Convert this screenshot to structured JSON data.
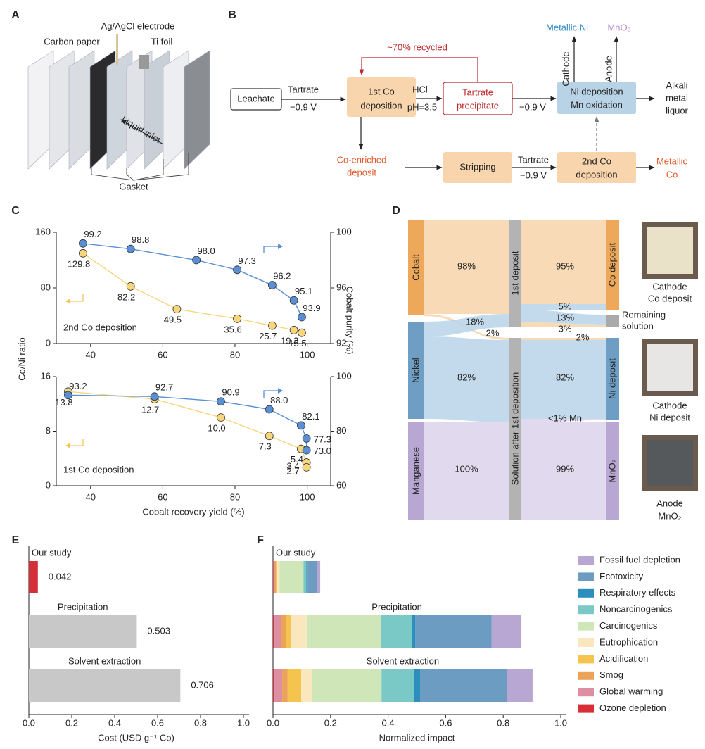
{
  "panel_labels": [
    "A",
    "B",
    "C",
    "D",
    "E",
    "F"
  ],
  "panel_a": {
    "labels": [
      "Ag/AgCl electrode",
      "Carbon paper",
      "Ti foil",
      "Liquid inlet",
      "Gasket"
    ]
  },
  "panel_b": {
    "nodes": [
      {
        "lines": [
          "Leachate"
        ]
      },
      {
        "lines": [
          "1st Co",
          "deposition"
        ]
      },
      {
        "lines": [
          "Tartrate",
          "precipitate"
        ]
      },
      {
        "lines": [
          "Ni deposition",
          "Mn oxidation"
        ]
      },
      {
        "lines": [
          "Alkali",
          "metal",
          "liquor"
        ]
      },
      {
        "lines": [
          "Co-enriched",
          "deposit"
        ]
      },
      {
        "lines": [
          "Stripping"
        ]
      },
      {
        "lines": [
          "2nd Co",
          "deposition"
        ]
      },
      {
        "lines": [
          "Metallic",
          "Co"
        ]
      },
      {
        "lines": [
          "Metallic Ni"
        ]
      },
      {
        "lines": [
          "MnO₂"
        ]
      }
    ],
    "edge_labels": [
      "Tartrate",
      "−0.9 V",
      "HCl",
      "pH=3.5",
      "−0.9 V",
      "~70% recycled",
      "Cathode",
      "Anode",
      "Tartrate",
      "−0.9 V"
    ]
  },
  "panel_d": {
    "sources": [
      "Cobalt",
      "Nickel",
      "Manganese"
    ],
    "middle": [
      "1st deposit",
      "Solution after 1st deposition"
    ],
    "targets": [
      "Co deposit",
      "Ni deposit",
      "MnO₂"
    ],
    "remaining": [
      "Remaining",
      "solution"
    ],
    "flow_labels": [
      "98%",
      "18%",
      "2%",
      "82%",
      "100%",
      "95%",
      "5%",
      "13%",
      "3%",
      "2%",
      "82%",
      "<1% Mn",
      "99%"
    ],
    "photo_captions": [
      [
        "Cathode",
        "Co deposit"
      ],
      [
        "Cathode",
        "Ni deposit"
      ],
      [
        "Anode",
        "MnO₂"
      ]
    ]
  },
  "chart_data": [
    {
      "type": "line",
      "ylabel": "Co/Ni ratio",
      "y2label": "Cobalt purity (%)",
      "annotation": "2nd Co deposition",
      "xlim": [
        30.5,
        106.5
      ],
      "xticks": [
        40,
        60,
        80,
        100
      ],
      "ylim": [
        0,
        160
      ],
      "yticks": [
        0,
        80,
        160
      ],
      "y2lim": [
        92,
        100
      ],
      "y2ticks": [
        92,
        96,
        100
      ],
      "series": [
        {
          "color": "#f7d67e",
          "axis": "y",
          "x": [
            37.9,
            51.1,
            63.9,
            80.6,
            90.3,
            96.3,
            98.5
          ],
          "values": [
            129.8,
            82.2,
            49.5,
            35.6,
            25.7,
            19.3,
            15.5
          ],
          "value_labels": [
            "129.8",
            "82.2",
            "49.5",
            "35.6",
            "25.7",
            "19.3",
            "15.5"
          ]
        },
        {
          "color": "#5b8fd4",
          "axis": "y2",
          "x": [
            37.9,
            51.1,
            69.3,
            80.6,
            90.3,
            96.3,
            98.5
          ],
          "values": [
            99.2,
            98.8,
            98.0,
            97.3,
            96.2,
            95.1,
            93.9
          ],
          "value_labels": [
            "99.2",
            "98.8",
            "98.0",
            "97.3",
            "96.2",
            "95.1",
            "93.9"
          ]
        }
      ]
    },
    {
      "type": "line",
      "xlabel": "Cobalt recovery yield (%)",
      "annotation": "1st Co deposition",
      "xlim": [
        30.5,
        106.5
      ],
      "xticks": [
        40,
        60,
        80,
        100
      ],
      "ylim": [
        0,
        16
      ],
      "yticks": [
        0,
        8,
        16
      ],
      "y2lim": [
        60,
        100
      ],
      "y2ticks": [
        60,
        80,
        100
      ],
      "series": [
        {
          "color": "#f7d67e",
          "axis": "y",
          "x": [
            33.8,
            57.7,
            76.1,
            89.5,
            98.3,
            99.8,
            99.8
          ],
          "values": [
            13.8,
            12.7,
            10.0,
            7.3,
            5.4,
            3.4,
            2.7
          ],
          "value_labels": [
            "13.8",
            "12.7",
            "10.0",
            "7.3",
            "5.4",
            "3.4",
            "2.7"
          ]
        },
        {
          "color": "#5b8fd4",
          "axis": "y2",
          "x": [
            33.8,
            57.7,
            76.1,
            89.5,
            98.3,
            99.8,
            99.8
          ],
          "values": [
            93.2,
            92.7,
            90.9,
            88.0,
            82.1,
            77.3,
            73.0
          ],
          "value_labels": [
            "93.2",
            "92.7",
            "90.9",
            "88.0",
            "82.1",
            "77.3",
            "73.0"
          ]
        }
      ]
    },
    {
      "type": "bar",
      "orientation": "horizontal",
      "xlabel": "Cost (USD g⁻¹ Co)",
      "categories": [
        "Our study",
        "Precipitation",
        "Solvent extraction"
      ],
      "values": [
        0.042,
        0.503,
        0.706
      ],
      "colors": [
        "#d3303a",
        "#c8c8c8",
        "#c8c8c8"
      ],
      "xlim": [
        0,
        1
      ],
      "xticks": [
        {
          "value": 0,
          "label": "0.0"
        },
        0.2,
        0.4,
        0.6,
        0.8,
        {
          "value": 1,
          "label": "1.0"
        }
      ]
    },
    {
      "type": "bar",
      "orientation": "horizontal",
      "stacked": true,
      "xlabel": "Normalized impact",
      "legend": "right",
      "categories": [
        "Our study",
        "Precipitation",
        "Solvent extraction"
      ],
      "xlim": [
        0,
        1
      ],
      "xticks": [
        {
          "value": 0,
          "label": "0.0"
        },
        0.2,
        0.4,
        0.6,
        0.8,
        {
          "value": 1,
          "label": "1.0"
        }
      ],
      "series": [
        {
          "name": "Ozone depletion",
          "color": "#d62f36",
          "values": [
            0.002,
            0.005,
            0.005
          ]
        },
        {
          "name": "Global warming",
          "color": "#dd8fa1",
          "values": [
            0.004,
            0.024,
            0.027
          ]
        },
        {
          "name": "Smog",
          "color": "#eba35a",
          "values": [
            0.004,
            0.015,
            0.019
          ]
        },
        {
          "name": "Acidification",
          "color": "#f4c44e",
          "values": [
            0.005,
            0.017,
            0.047
          ]
        },
        {
          "name": "Eutrophication",
          "color": "#fbe7bd",
          "values": [
            0.008,
            0.056,
            0.039
          ]
        },
        {
          "name": "Carcinogenics",
          "color": "#cfe6b8",
          "values": [
            0.083,
            0.257,
            0.24
          ]
        },
        {
          "name": "Noncarcinogenics",
          "color": "#7ac9c6",
          "values": [
            0.01,
            0.108,
            0.112
          ]
        },
        {
          "name": "Respiratory effects",
          "color": "#2c8ebc",
          "values": [
            0.004,
            0.012,
            0.022
          ]
        },
        {
          "name": "Ecotoxicity",
          "color": "#6c9cc2",
          "values": [
            0.034,
            0.266,
            0.301
          ]
        },
        {
          "name": "Fossil fuel depletion",
          "color": "#b8a6d3",
          "values": [
            0.01,
            0.101,
            0.09
          ]
        }
      ]
    }
  ]
}
